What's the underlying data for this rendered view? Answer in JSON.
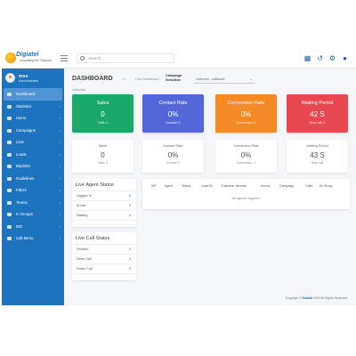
{
  "brand": {
    "name": "Digiatel",
    "tagline": "Innovating the Telecom"
  },
  "search": {
    "placeholder": "Search..."
  },
  "topbar_icons": [
    "grid-icon",
    "history-icon",
    "settings-icon",
    "user-icon"
  ],
  "user": {
    "name": "RISA",
    "role": "Administrator"
  },
  "sidebar": {
    "items": [
      {
        "label": "Dashboard",
        "icon": "home-icon",
        "active": true,
        "chevron": false
      },
      {
        "label": "Statistics",
        "icon": "chart-icon",
        "chevron": true
      },
      {
        "label": "Users",
        "icon": "users-icon",
        "chevron": true
      },
      {
        "label": "Campaigns",
        "icon": "campaign-icon",
        "chevron": true
      },
      {
        "label": "Lists",
        "icon": "list-icon",
        "chevron": true
      },
      {
        "label": "Leads",
        "icon": "leads-icon",
        "chevron": true
      },
      {
        "label": "Blacklist",
        "icon": "block-icon",
        "chevron": true
      },
      {
        "label": "Guidelines",
        "icon": "book-icon",
        "chevron": true
      },
      {
        "label": "Filters",
        "icon": "filter-icon",
        "chevron": true
      },
      {
        "label": "Teams",
        "icon": "team-icon",
        "chevron": true
      },
      {
        "label": "In Groups",
        "icon": "group-icon",
        "chevron": true
      },
      {
        "label": "DID",
        "icon": "phone-icon",
        "chevron": true
      },
      {
        "label": "Call Menu",
        "icon": "menu-icon",
        "chevron": true
      }
    ]
  },
  "header": {
    "title": "DASHBOARD",
    "breadcrumb": "Live Dashboard",
    "campaign_label": "Campaign Selection",
    "campaign_value": "outbound - outbound",
    "selected_campaign": "outbound"
  },
  "colors": {
    "sales": "#1ba96a",
    "contact": "#5467d8",
    "conversion": "#f48a26",
    "waiting": "#e8484f",
    "sidebar": "#1e73be"
  },
  "cards": [
    {
      "title": "Sales",
      "value": "0",
      "sub": "Calls: 0"
    },
    {
      "title": "Contact Rate",
      "value": "0%",
      "sub": "Contact: 0"
    },
    {
      "title": "Conversion Rate",
      "value": "0%",
      "sub": "Conversion: 0"
    },
    {
      "title": "Waiting Period",
      "value": "42 S",
      "sub": "Drop call: 0"
    }
  ],
  "cards_white": [
    {
      "title": "Sales",
      "value": "0",
      "sub": "Calls: 0"
    },
    {
      "title": "Contact Rate",
      "value": "0%",
      "sub": "Contact: 0"
    },
    {
      "title": "Conversion Rate",
      "value": "0%",
      "sub": "Conversion: 0"
    },
    {
      "title": "Waiting Period",
      "value": "43 S",
      "sub": "Drop call"
    }
  ],
  "live_agent": {
    "title": "Live Agent Status",
    "rows": [
      {
        "label": "Logged In",
        "value": "0"
      },
      {
        "label": "In call",
        "value": "0"
      },
      {
        "label": "Waiting",
        "value": "0"
      }
    ]
  },
  "live_call": {
    "title": "Live Call Status",
    "rows": [
      {
        "label": "Paused",
        "value": "0"
      },
      {
        "label": "Dead Call",
        "value": "0"
      },
      {
        "label": "Drops Call",
        "value": "0"
      }
    ]
  },
  "agents_table": {
    "columns": [
      "SIP",
      "Agent",
      "Status",
      "Lead ID",
      "Customer Number",
      "min:ss",
      "Campaign",
      "Calls",
      "IN Group"
    ],
    "empty": "No agents logged in"
  },
  "footer": {
    "prefix": "Copyright ©",
    "brand": "Dolabit",
    "suffix": "2019 All Rights Reserved."
  }
}
